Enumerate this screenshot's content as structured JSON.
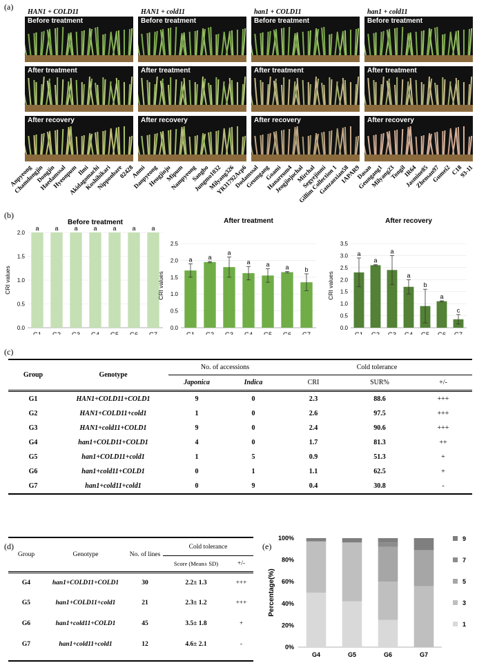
{
  "panel_a": {
    "label": "(a)",
    "groups": [
      {
        "title": "HAN1 + COLD11",
        "captions": [
          "Before treatment",
          "After treatment",
          "After recovery"
        ],
        "accessions": [
          "Anpyeong",
          "Chamdongjin",
          "Dongjin",
          "Haedamssal",
          "Hyeonpum",
          "Ilmi",
          "Akidagomachi",
          "Koshihikari",
          "Nipponbare",
          "02428"
        ]
      },
      {
        "title": "HAN1 + cold11",
        "captions": [
          "Before treatment",
          "After treatment",
          "After recovery"
        ],
        "accessions": [
          "Anmi",
          "Danpyeong",
          "Heugjinju",
          "Mipum",
          "Nampyeong",
          "Sangbo",
          "Jungmo1032",
          "Milyang326",
          "YR31792Acp6"
        ]
      },
      {
        "title": "han1 + COLD11",
        "captions": [
          "Before treatment",
          "After treatment",
          "After recovery"
        ],
        "accessions": [
          "Dodamssal",
          "Geumgang",
          "Goami",
          "Hanareum4",
          "Jeogjinjuchal",
          "Mirchal",
          "Segyejinmi",
          "Gillim Collection 1",
          "Ganzaoxian58",
          "IAPAR9"
        ]
      },
      {
        "title": "han1 + cold11",
        "captions": [
          "Before treatment",
          "After treatment",
          "After recovery"
        ],
        "accessions": [
          "Dasan",
          "Geungang1",
          "Milyang23",
          "Tongil",
          "IR64",
          "Jasmine85",
          "Zhensan97",
          "Gumei2",
          "C18",
          "93-11"
        ]
      }
    ]
  },
  "panel_b": {
    "label": "(b)",
    "chart_data": [
      {
        "type": "bar",
        "title": "Before treatment",
        "ylabel": "CRI values",
        "categories": [
          "G1",
          "G2",
          "G3",
          "G4",
          "G5",
          "G6",
          "G7"
        ],
        "values": [
          2.0,
          2.0,
          2.0,
          2.0,
          2.0,
          2.0,
          2.0
        ],
        "errors": [
          0,
          0,
          0,
          0,
          0,
          0,
          0
        ],
        "letters": [
          "a",
          "a",
          "a",
          "a",
          "a",
          "a",
          "a"
        ],
        "ylim": [
          0,
          2.0
        ],
        "yticks": [
          "0.0",
          "0.5",
          "1.0",
          "1.5",
          "2.0"
        ],
        "color": "#c5e0b4"
      },
      {
        "type": "bar",
        "title": "After treatment",
        "ylabel": "CRI values",
        "categories": [
          "G1",
          "G2",
          "G3",
          "G4",
          "G5",
          "G6",
          "G7"
        ],
        "values": [
          1.7,
          1.95,
          1.8,
          1.62,
          1.55,
          1.65,
          1.35
        ],
        "errors": [
          0.2,
          0.02,
          0.3,
          0.2,
          0.2,
          0.02,
          0.25
        ],
        "letters": [
          "a",
          "a",
          "a",
          "a",
          "a",
          "a",
          "b"
        ],
        "ylim": [
          0,
          2.5
        ],
        "yticks": [
          "0.0",
          "0.5",
          "1.0",
          "1.5",
          "2.0",
          "2.5"
        ],
        "color": "#70ad47"
      },
      {
        "type": "bar",
        "title": "After recovery",
        "ylabel": "CRI values",
        "categories": [
          "G1",
          "G2",
          "G3",
          "G4",
          "G5",
          "G6",
          "G7"
        ],
        "values": [
          2.3,
          2.6,
          2.4,
          1.7,
          0.9,
          1.1,
          0.35
        ],
        "errors": [
          0.6,
          0.02,
          0.6,
          0.3,
          0.7,
          0.02,
          0.2
        ],
        "letters": [
          "a",
          "a",
          "a",
          "a",
          "b",
          "a",
          "c"
        ],
        "ylim": [
          0,
          3.5
        ],
        "yticks": [
          "0.0",
          "0.5",
          "1.0",
          "1.5",
          "2.0",
          "2.5",
          "3.0",
          "3.5"
        ],
        "color": "#538135"
      }
    ]
  },
  "panel_c": {
    "label": "(c)",
    "headers": {
      "group": "Group",
      "genotype": "Genotype",
      "accessions": "No. of accessions",
      "cold_tolerance": "Cold tolerance",
      "japonica": "Japonica",
      "indica": "Indica",
      "cri": "CRI",
      "sur": "SUR%",
      "pm": "+/-"
    },
    "rows": [
      {
        "group": "G1",
        "genotype": "HAN1+COLD11+COLD1",
        "japonica": "9",
        "indica": "0",
        "cri": "2.3",
        "sur": "88.6",
        "pm": "+++"
      },
      {
        "group": "G2",
        "genotype": "HAN1+COLD11+cold1",
        "japonica": "1",
        "indica": "0",
        "cri": "2.6",
        "sur": "97.5",
        "pm": "+++"
      },
      {
        "group": "G3",
        "genotype": "HAN1+cold11+COLD1",
        "japonica": "9",
        "indica": "0",
        "cri": "2.4",
        "sur": "90.6",
        "pm": "+++"
      },
      {
        "group": "G4",
        "genotype": "han1+COLD11+COLD1",
        "japonica": "4",
        "indica": "0",
        "cri": "1.7",
        "sur": "81.3",
        "pm": "++"
      },
      {
        "group": "G5",
        "genotype": "han1+COLD11+cold1",
        "japonica": "1",
        "indica": "5",
        "cri": "0.9",
        "sur": "51.3",
        "pm": "+"
      },
      {
        "group": "G6",
        "genotype": "han1+cold11+COLD1",
        "japonica": "0",
        "indica": "1",
        "cri": "1.1",
        "sur": "62.5",
        "pm": "+"
      },
      {
        "group": "G7",
        "genotype": "han1+cold11+cold1",
        "japonica": "0",
        "indica": "9",
        "cri": "0.4",
        "sur": "30.8",
        "pm": "-"
      }
    ]
  },
  "panel_d": {
    "label": "(d)",
    "headers": {
      "group": "Group",
      "genotype": "Genotype",
      "lines": "No. of lines",
      "cold_tolerance": "Cold tolerance",
      "score": "Score (Mean± SD)",
      "pm": "+/-"
    },
    "rows": [
      {
        "group": "G4",
        "genotype": "han1+COLD11+COLD1",
        "lines": "30",
        "score": "2.2± 1.3",
        "pm": "+++"
      },
      {
        "group": "G5",
        "genotype": "han1+COLD11+cold1",
        "lines": "21",
        "score": "2.3± 1.2",
        "pm": "+++"
      },
      {
        "group": "G6",
        "genotype": "han1+cold11+COLD1",
        "lines": "45",
        "score": "3.5± 1.8",
        "pm": "+"
      },
      {
        "group": "G7",
        "genotype": "han1+cold11+cold1",
        "lines": "12",
        "score": "4.6± 2.1",
        "pm": "-"
      }
    ]
  },
  "panel_e": {
    "label": "(e)",
    "chart_data": {
      "type": "bar",
      "stacked": true,
      "ylabel": "Percentage(%)",
      "categories": [
        "G4",
        "G5",
        "G6",
        "G7"
      ],
      "yticks": [
        "0%",
        "20%",
        "40%",
        "60%",
        "80%",
        "100%"
      ],
      "series": [
        {
          "name": "1",
          "values": [
            50,
            42,
            25,
            0
          ],
          "color": "#d9d9d9"
        },
        {
          "name": "3",
          "values": [
            47,
            54,
            35,
            56
          ],
          "color": "#bfbfbf"
        },
        {
          "name": "5",
          "values": [
            0,
            0,
            32,
            33
          ],
          "color": "#a6a6a6"
        },
        {
          "name": "7",
          "values": [
            0,
            0,
            4,
            0
          ],
          "color": "#8c8c8c"
        },
        {
          "name": "9",
          "values": [
            3,
            4,
            4,
            11
          ],
          "color": "#7f7f7f"
        }
      ],
      "legend_order": [
        "9",
        "7",
        "5",
        "3",
        "1"
      ]
    }
  }
}
